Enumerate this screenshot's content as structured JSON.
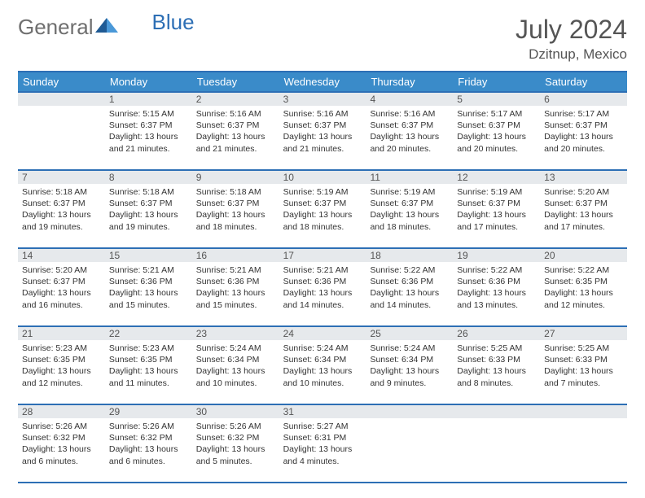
{
  "brand": {
    "general": "General",
    "blue": "Blue"
  },
  "title": {
    "month": "July 2024",
    "location": "Dzitnup, Mexico"
  },
  "colors": {
    "header_bg": "#3a8bc9",
    "header_border": "#2d6fb5",
    "daynum_bg": "#e6e9ec",
    "text": "#333333",
    "muted": "#555555",
    "logo_gray": "#6f6f6f",
    "logo_blue": "#2d6fb5",
    "logo_triangle_dark": "#1f5a94",
    "logo_triangle_light": "#4a98d8"
  },
  "day_headers": [
    "Sunday",
    "Monday",
    "Tuesday",
    "Wednesday",
    "Thursday",
    "Friday",
    "Saturday"
  ],
  "weeks": [
    [
      {
        "num": "",
        "sunrise": "",
        "sunset": "",
        "daylight_a": "",
        "daylight_b": ""
      },
      {
        "num": "1",
        "sunrise": "Sunrise: 5:15 AM",
        "sunset": "Sunset: 6:37 PM",
        "daylight_a": "Daylight: 13 hours",
        "daylight_b": "and 21 minutes."
      },
      {
        "num": "2",
        "sunrise": "Sunrise: 5:16 AM",
        "sunset": "Sunset: 6:37 PM",
        "daylight_a": "Daylight: 13 hours",
        "daylight_b": "and 21 minutes."
      },
      {
        "num": "3",
        "sunrise": "Sunrise: 5:16 AM",
        "sunset": "Sunset: 6:37 PM",
        "daylight_a": "Daylight: 13 hours",
        "daylight_b": "and 21 minutes."
      },
      {
        "num": "4",
        "sunrise": "Sunrise: 5:16 AM",
        "sunset": "Sunset: 6:37 PM",
        "daylight_a": "Daylight: 13 hours",
        "daylight_b": "and 20 minutes."
      },
      {
        "num": "5",
        "sunrise": "Sunrise: 5:17 AM",
        "sunset": "Sunset: 6:37 PM",
        "daylight_a": "Daylight: 13 hours",
        "daylight_b": "and 20 minutes."
      },
      {
        "num": "6",
        "sunrise": "Sunrise: 5:17 AM",
        "sunset": "Sunset: 6:37 PM",
        "daylight_a": "Daylight: 13 hours",
        "daylight_b": "and 20 minutes."
      }
    ],
    [
      {
        "num": "7",
        "sunrise": "Sunrise: 5:18 AM",
        "sunset": "Sunset: 6:37 PM",
        "daylight_a": "Daylight: 13 hours",
        "daylight_b": "and 19 minutes."
      },
      {
        "num": "8",
        "sunrise": "Sunrise: 5:18 AM",
        "sunset": "Sunset: 6:37 PM",
        "daylight_a": "Daylight: 13 hours",
        "daylight_b": "and 19 minutes."
      },
      {
        "num": "9",
        "sunrise": "Sunrise: 5:18 AM",
        "sunset": "Sunset: 6:37 PM",
        "daylight_a": "Daylight: 13 hours",
        "daylight_b": "and 18 minutes."
      },
      {
        "num": "10",
        "sunrise": "Sunrise: 5:19 AM",
        "sunset": "Sunset: 6:37 PM",
        "daylight_a": "Daylight: 13 hours",
        "daylight_b": "and 18 minutes."
      },
      {
        "num": "11",
        "sunrise": "Sunrise: 5:19 AM",
        "sunset": "Sunset: 6:37 PM",
        "daylight_a": "Daylight: 13 hours",
        "daylight_b": "and 18 minutes."
      },
      {
        "num": "12",
        "sunrise": "Sunrise: 5:19 AM",
        "sunset": "Sunset: 6:37 PM",
        "daylight_a": "Daylight: 13 hours",
        "daylight_b": "and 17 minutes."
      },
      {
        "num": "13",
        "sunrise": "Sunrise: 5:20 AM",
        "sunset": "Sunset: 6:37 PM",
        "daylight_a": "Daylight: 13 hours",
        "daylight_b": "and 17 minutes."
      }
    ],
    [
      {
        "num": "14",
        "sunrise": "Sunrise: 5:20 AM",
        "sunset": "Sunset: 6:37 PM",
        "daylight_a": "Daylight: 13 hours",
        "daylight_b": "and 16 minutes."
      },
      {
        "num": "15",
        "sunrise": "Sunrise: 5:21 AM",
        "sunset": "Sunset: 6:36 PM",
        "daylight_a": "Daylight: 13 hours",
        "daylight_b": "and 15 minutes."
      },
      {
        "num": "16",
        "sunrise": "Sunrise: 5:21 AM",
        "sunset": "Sunset: 6:36 PM",
        "daylight_a": "Daylight: 13 hours",
        "daylight_b": "and 15 minutes."
      },
      {
        "num": "17",
        "sunrise": "Sunrise: 5:21 AM",
        "sunset": "Sunset: 6:36 PM",
        "daylight_a": "Daylight: 13 hours",
        "daylight_b": "and 14 minutes."
      },
      {
        "num": "18",
        "sunrise": "Sunrise: 5:22 AM",
        "sunset": "Sunset: 6:36 PM",
        "daylight_a": "Daylight: 13 hours",
        "daylight_b": "and 14 minutes."
      },
      {
        "num": "19",
        "sunrise": "Sunrise: 5:22 AM",
        "sunset": "Sunset: 6:36 PM",
        "daylight_a": "Daylight: 13 hours",
        "daylight_b": "and 13 minutes."
      },
      {
        "num": "20",
        "sunrise": "Sunrise: 5:22 AM",
        "sunset": "Sunset: 6:35 PM",
        "daylight_a": "Daylight: 13 hours",
        "daylight_b": "and 12 minutes."
      }
    ],
    [
      {
        "num": "21",
        "sunrise": "Sunrise: 5:23 AM",
        "sunset": "Sunset: 6:35 PM",
        "daylight_a": "Daylight: 13 hours",
        "daylight_b": "and 12 minutes."
      },
      {
        "num": "22",
        "sunrise": "Sunrise: 5:23 AM",
        "sunset": "Sunset: 6:35 PM",
        "daylight_a": "Daylight: 13 hours",
        "daylight_b": "and 11 minutes."
      },
      {
        "num": "23",
        "sunrise": "Sunrise: 5:24 AM",
        "sunset": "Sunset: 6:34 PM",
        "daylight_a": "Daylight: 13 hours",
        "daylight_b": "and 10 minutes."
      },
      {
        "num": "24",
        "sunrise": "Sunrise: 5:24 AM",
        "sunset": "Sunset: 6:34 PM",
        "daylight_a": "Daylight: 13 hours",
        "daylight_b": "and 10 minutes."
      },
      {
        "num": "25",
        "sunrise": "Sunrise: 5:24 AM",
        "sunset": "Sunset: 6:34 PM",
        "daylight_a": "Daylight: 13 hours",
        "daylight_b": "and 9 minutes."
      },
      {
        "num": "26",
        "sunrise": "Sunrise: 5:25 AM",
        "sunset": "Sunset: 6:33 PM",
        "daylight_a": "Daylight: 13 hours",
        "daylight_b": "and 8 minutes."
      },
      {
        "num": "27",
        "sunrise": "Sunrise: 5:25 AM",
        "sunset": "Sunset: 6:33 PM",
        "daylight_a": "Daylight: 13 hours",
        "daylight_b": "and 7 minutes."
      }
    ],
    [
      {
        "num": "28",
        "sunrise": "Sunrise: 5:26 AM",
        "sunset": "Sunset: 6:32 PM",
        "daylight_a": "Daylight: 13 hours",
        "daylight_b": "and 6 minutes."
      },
      {
        "num": "29",
        "sunrise": "Sunrise: 5:26 AM",
        "sunset": "Sunset: 6:32 PM",
        "daylight_a": "Daylight: 13 hours",
        "daylight_b": "and 6 minutes."
      },
      {
        "num": "30",
        "sunrise": "Sunrise: 5:26 AM",
        "sunset": "Sunset: 6:32 PM",
        "daylight_a": "Daylight: 13 hours",
        "daylight_b": "and 5 minutes."
      },
      {
        "num": "31",
        "sunrise": "Sunrise: 5:27 AM",
        "sunset": "Sunset: 6:31 PM",
        "daylight_a": "Daylight: 13 hours",
        "daylight_b": "and 4 minutes."
      },
      {
        "num": "",
        "sunrise": "",
        "sunset": "",
        "daylight_a": "",
        "daylight_b": ""
      },
      {
        "num": "",
        "sunrise": "",
        "sunset": "",
        "daylight_a": "",
        "daylight_b": ""
      },
      {
        "num": "",
        "sunrise": "",
        "sunset": "",
        "daylight_a": "",
        "daylight_b": ""
      }
    ]
  ]
}
